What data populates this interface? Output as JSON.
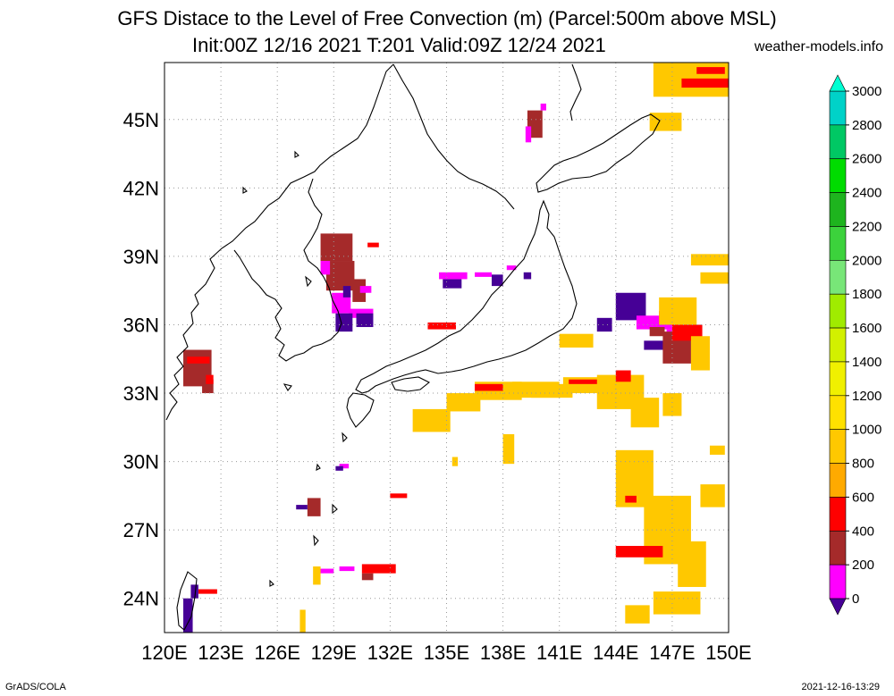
{
  "header": {
    "title": "GFS Distace to the Level of Free Convection (m) (Parcel:500m above MSL)",
    "subtitle": "Init:00Z 12/16 2021 T:201 Valid:09Z 12/24 2021",
    "site": "weather-models.info"
  },
  "footer": {
    "left": "GrADS/COLA",
    "right": "2021-12-16-13:29"
  },
  "axes": {
    "lon_labels": [
      "120E",
      "123E",
      "126E",
      "129E",
      "132E",
      "135E",
      "138E",
      "141E",
      "144E",
      "147E",
      "150E"
    ],
    "lat_labels": [
      "45N",
      "42N",
      "39N",
      "36N",
      "33N",
      "30N",
      "27N",
      "24N"
    ]
  },
  "colorbar": {
    "labels": [
      "3000",
      "2800",
      "2600",
      "2400",
      "2200",
      "2000",
      "1800",
      "1600",
      "1400",
      "1200",
      "1000",
      "800",
      "600",
      "400",
      "200",
      "0"
    ],
    "colors": [
      "#00d2c8",
      "#00c864",
      "#00dc00",
      "#1eb41e",
      "#3cd23c",
      "#78e678",
      "#a0eb00",
      "#d2f000",
      "#f0f000",
      "#ffe100",
      "#ffc800",
      "#ffaa00",
      "#ff0000",
      "#a52a2a",
      "#ff00ff",
      "#460096"
    ],
    "top_arrow_color": "#00ffd2",
    "bottom_arrow_color": "#460096"
  },
  "map": {
    "lon_range": [
      120,
      150
    ],
    "lat_range": [
      22.5,
      47.5
    ],
    "regions": [
      {
        "name": "korea-dlfc",
        "c": "#a52a2a",
        "cells": [
          [
            128.3,
            38.8,
            1.7,
            1.2
          ],
          [
            128.6,
            37.5,
            1.5,
            1.3
          ],
          [
            130.0,
            37.0,
            0.7,
            1.0
          ]
        ]
      },
      {
        "name": "korea-magenta",
        "c": "#ff00ff",
        "cells": [
          [
            128.9,
            36.5,
            1.0,
            0.9
          ],
          [
            129.8,
            36.3,
            1.3,
            0.4
          ],
          [
            128.3,
            38.2,
            0.5,
            0.6
          ],
          [
            130.4,
            37.4,
            0.6,
            0.3
          ]
        ]
      },
      {
        "name": "korea-purple",
        "c": "#460096",
        "cells": [
          [
            129.1,
            35.7,
            0.9,
            0.8
          ],
          [
            130.2,
            35.9,
            0.9,
            0.6
          ],
          [
            129.5,
            37.2,
            0.4,
            0.5
          ]
        ]
      },
      {
        "name": "red-strip-1",
        "c": "#ff0000",
        "cells": [
          [
            130.8,
            39.4,
            0.6,
            0.2
          ],
          [
            134.0,
            35.8,
            1.5,
            0.3
          ]
        ]
      },
      {
        "name": "sakhalin-dlfc",
        "c": "#a52a2a",
        "cells": [
          [
            139.3,
            44.2,
            0.8,
            1.2
          ]
        ]
      },
      {
        "name": "sakhalin-magenta",
        "c": "#ff00ff",
        "cells": [
          [
            139.2,
            44.0,
            0.3,
            0.7
          ],
          [
            140.0,
            45.4,
            0.3,
            0.3
          ]
        ]
      },
      {
        "name": "sea-japan-purple",
        "c": "#460096",
        "cells": [
          [
            134.8,
            37.6,
            1.0,
            0.4
          ],
          [
            137.4,
            37.7,
            0.6,
            0.5
          ],
          [
            139.1,
            38.0,
            0.4,
            0.3
          ]
        ]
      },
      {
        "name": "sea-japan-magenta",
        "c": "#ff00ff",
        "cells": [
          [
            134.6,
            38.0,
            1.5,
            0.3
          ],
          [
            138.2,
            38.4,
            0.5,
            0.2
          ],
          [
            136.5,
            38.1,
            0.9,
            0.2
          ]
        ]
      },
      {
        "name": "taiwan-dlfc",
        "c": "#a52a2a",
        "cells": [
          [
            121.0,
            33.3,
            1.5,
            1.6
          ],
          [
            122.0,
            33.0,
            0.6,
            0.6
          ]
        ]
      },
      {
        "name": "taiwan-red",
        "c": "#ff0000",
        "cells": [
          [
            121.2,
            34.3,
            1.2,
            0.3
          ],
          [
            122.2,
            33.4,
            0.4,
            0.4
          ]
        ]
      },
      {
        "name": "pacific-ne-purple",
        "c": "#460096",
        "cells": [
          [
            144.0,
            36.2,
            1.6,
            1.2
          ],
          [
            143.0,
            35.7,
            0.8,
            0.6
          ],
          [
            145.5,
            34.9,
            1.2,
            0.4
          ]
        ]
      },
      {
        "name": "pacific-ne-magenta",
        "c": "#ff00ff",
        "cells": [
          [
            145.1,
            35.8,
            2.0,
            0.6
          ],
          [
            146.7,
            35.0,
            1.0,
            0.8
          ]
        ]
      },
      {
        "name": "pacific-ne-dlfc",
        "c": "#a52a2a",
        "cells": [
          [
            146.5,
            34.3,
            1.5,
            1.4
          ],
          [
            145.8,
            35.5,
            0.8,
            0.4
          ]
        ]
      },
      {
        "name": "pacific-ne-red",
        "c": "#ff0000",
        "cells": [
          [
            147.0,
            35.3,
            1.6,
            0.7
          ],
          [
            146.3,
            36.0,
            0.7,
            0.6
          ]
        ]
      },
      {
        "name": "pacific-yellow-1",
        "c": "#ffc800",
        "cells": [
          [
            148.0,
            34.0,
            1.0,
            1.5
          ],
          [
            146.3,
            36.0,
            2.0,
            1.2
          ],
          [
            141.0,
            35.0,
            1.8,
            0.6
          ],
          [
            139.5,
            32.8,
            2.2,
            0.6
          ]
        ]
      },
      {
        "name": "southern-front",
        "c": "#ffc800",
        "cells": [
          [
            133.2,
            31.3,
            2.0,
            1.0
          ],
          [
            135.0,
            32.2,
            1.8,
            0.8
          ],
          [
            136.5,
            32.7,
            2.5,
            0.8
          ],
          [
            138.5,
            32.8,
            2.5,
            0.7
          ],
          [
            141.2,
            33.0,
            2.5,
            0.7
          ],
          [
            143.0,
            32.3,
            2.5,
            1.5
          ],
          [
            144.8,
            31.5,
            1.5,
            1.3
          ],
          [
            146.5,
            32.0,
            1.0,
            1.0
          ]
        ]
      },
      {
        "name": "southern-front-red",
        "c": "#ff0000",
        "cells": [
          [
            136.5,
            33.1,
            1.5,
            0.3
          ],
          [
            141.5,
            33.4,
            1.5,
            0.2
          ],
          [
            144.0,
            33.5,
            0.8,
            0.5
          ]
        ]
      },
      {
        "name": "southeast-yellow",
        "c": "#ffc800",
        "cells": [
          [
            144.0,
            28.0,
            2.0,
            2.5
          ],
          [
            145.5,
            25.5,
            2.5,
            3.0
          ],
          [
            147.3,
            24.5,
            1.5,
            2.0
          ],
          [
            146.0,
            23.3,
            2.5,
            1.0
          ],
          [
            144.5,
            22.9,
            1.3,
            0.8
          ],
          [
            148.5,
            28.0,
            1.3,
            1.0
          ],
          [
            149.0,
            30.3,
            0.8,
            0.4
          ]
        ]
      },
      {
        "name": "southeast-red",
        "c": "#ff0000",
        "cells": [
          [
            144.0,
            25.8,
            2.5,
            0.5
          ],
          [
            144.5,
            28.2,
            0.6,
            0.3
          ]
        ]
      },
      {
        "name": "northeast-yellow",
        "c": "#ffc800",
        "cells": [
          [
            146.0,
            46.0,
            4.0,
            1.5
          ],
          [
            145.8,
            44.5,
            1.7,
            0.8
          ],
          [
            148.0,
            38.6,
            2.0,
            0.5
          ],
          [
            148.5,
            37.8,
            1.5,
            0.5
          ]
        ]
      },
      {
        "name": "northeast-red",
        "c": "#ff0000",
        "cells": [
          [
            147.5,
            46.4,
            2.5,
            0.4
          ],
          [
            148.3,
            47.0,
            1.5,
            0.3
          ]
        ]
      },
      {
        "name": "misc-south-dlfc",
        "c": "#a52a2a",
        "cells": [
          [
            127.6,
            27.6,
            0.7,
            0.8
          ],
          [
            130.5,
            24.8,
            0.6,
            0.3
          ]
        ]
      },
      {
        "name": "misc-south-red",
        "c": "#ff0000",
        "cells": [
          [
            130.5,
            25.1,
            1.8,
            0.4
          ],
          [
            132.0,
            28.4,
            0.9,
            0.2
          ],
          [
            121.8,
            24.2,
            1.0,
            0.2
          ]
        ]
      },
      {
        "name": "misc-south-magenta",
        "c": "#ff00ff",
        "cells": [
          [
            128.0,
            25.1,
            1.0,
            0.2
          ],
          [
            129.3,
            25.2,
            0.8,
            0.2
          ],
          [
            129.3,
            29.7,
            0.5,
            0.2
          ]
        ]
      },
      {
        "name": "misc-south-purple",
        "c": "#460096",
        "cells": [
          [
            121.0,
            22.5,
            0.5,
            1.5
          ],
          [
            121.4,
            24.0,
            0.4,
            0.6
          ],
          [
            127.0,
            27.9,
            0.6,
            0.2
          ],
          [
            129.1,
            29.6,
            0.4,
            0.2
          ]
        ]
      },
      {
        "name": "misc-yellow",
        "c": "#ffc800",
        "cells": [
          [
            127.2,
            22.5,
            0.3,
            1.0
          ],
          [
            127.9,
            24.6,
            0.4,
            0.8
          ],
          [
            138.0,
            29.9,
            0.6,
            1.3
          ],
          [
            135.3,
            29.8,
            0.3,
            0.4
          ]
        ]
      }
    ]
  }
}
